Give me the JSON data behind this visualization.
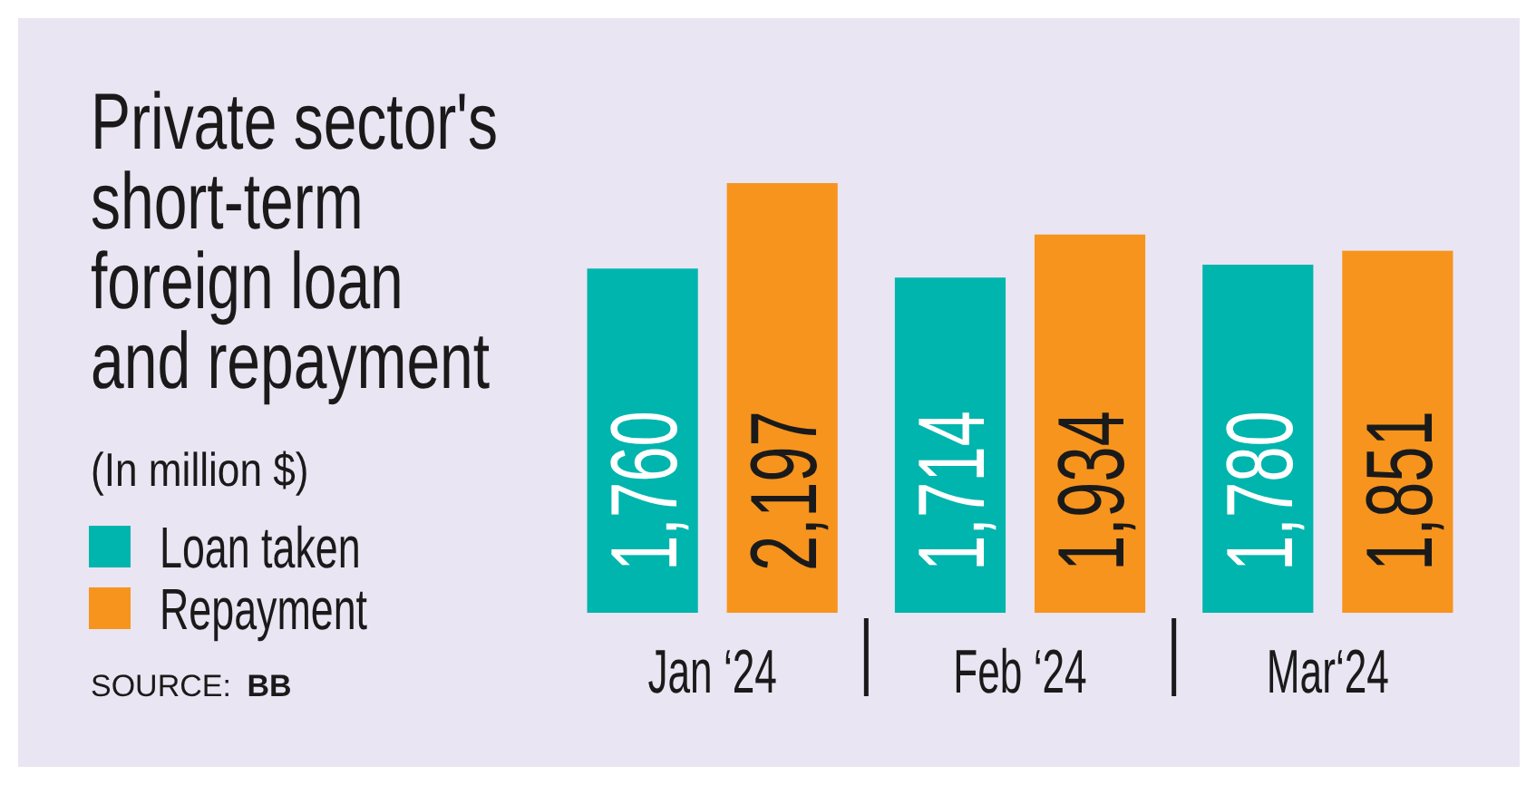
{
  "chart_data": {
    "type": "bar",
    "title": "Private sector's short-term foreign loan and repayment",
    "subtitle": "(In million $)",
    "categories": [
      "Jan ‘24",
      "Feb ‘24",
      "Mar‘24"
    ],
    "series": [
      {
        "name": "Loan taken",
        "color": "#00b5ad",
        "values": [
          1760,
          1714,
          1780
        ],
        "value_labels": [
          "1,760",
          "1,714",
          "1,780"
        ]
      },
      {
        "name": "Repayment",
        "color": "#f7941d",
        "values": [
          2197,
          1934,
          1851
        ],
        "value_labels": [
          "2,197",
          "1,934",
          "1,851"
        ]
      }
    ],
    "legend": "left",
    "annotations": [
      "SOURCE: BB"
    ]
  }
}
